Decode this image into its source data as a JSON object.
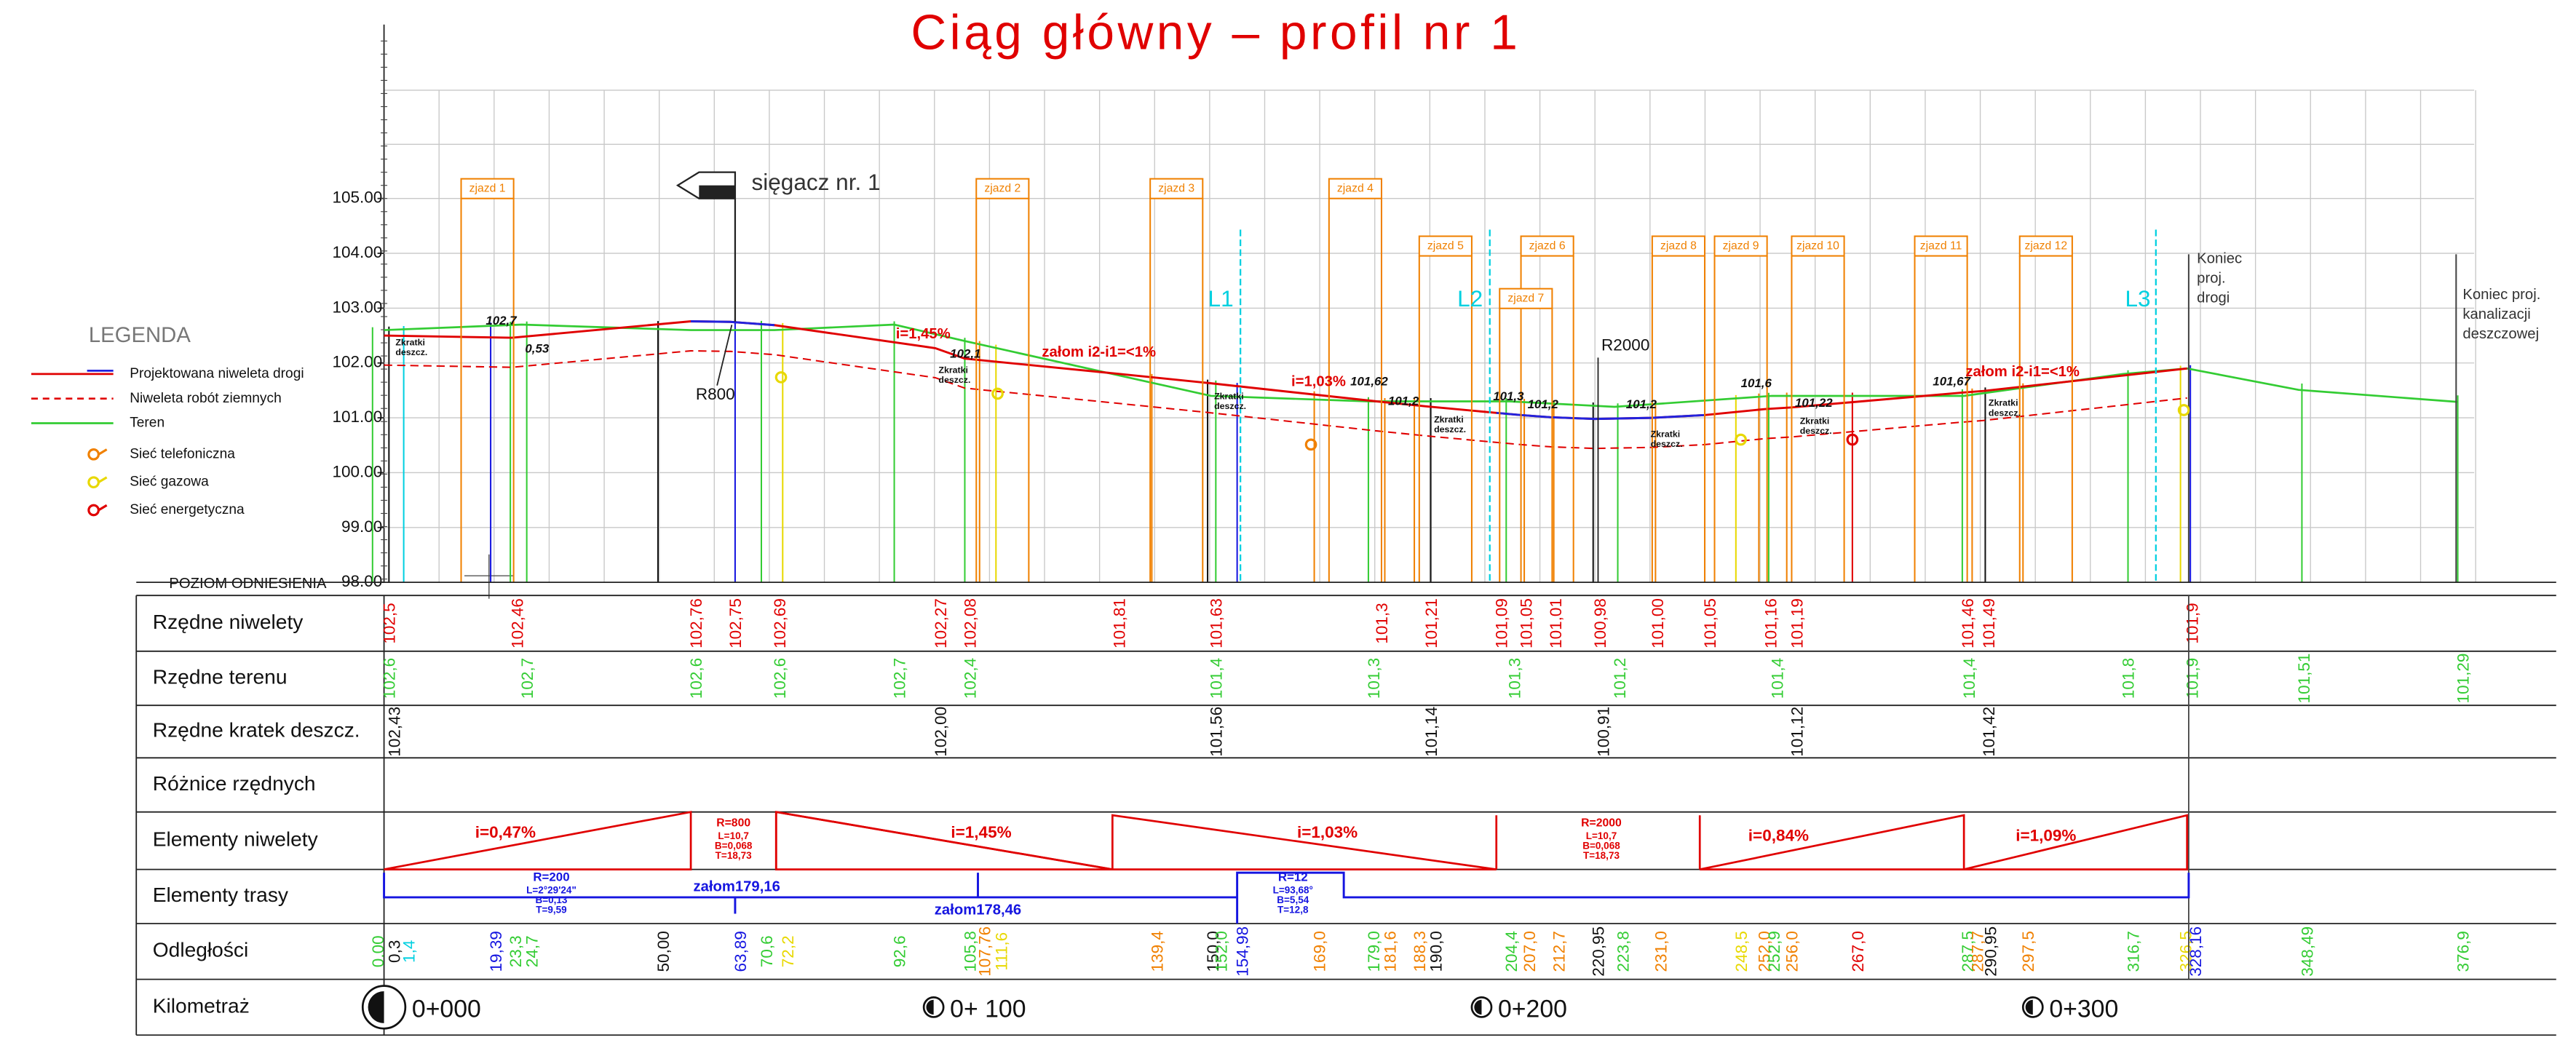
{
  "title": "Ciąg główny – profil nr 1",
  "legend": {
    "title": "LEGENDA",
    "items": [
      "Projektowana niweleta drogi",
      "Niweleta robót ziemnych",
      "Teren",
      "Sieć telefoniczna",
      "Sieć gazowa",
      "Sieć energetyczna"
    ]
  },
  "axis": {
    "ticks": [
      "105.00",
      "104.00",
      "103.00",
      "102.00",
      "101.00",
      "100.00",
      "99.00",
      "98.00"
    ]
  },
  "datum_label": "POZIOM ODNIESIENIA",
  "profile": {
    "driveways": [
      "zjazd 1",
      "zjazd 2",
      "zjazd 3",
      "zjazd 4",
      "zjazd 5",
      "zjazd 6",
      "zjazd 7",
      "zjazd 8",
      "zjazd 9",
      "zjazd 10",
      "zjazd 11",
      "zjazd 12"
    ],
    "lines": [
      "L1",
      "L2",
      "L3"
    ],
    "branch": "sięgacz nr. 1",
    "curves": [
      "R800",
      "R2000"
    ],
    "end_road": [
      "Koniec",
      "proj.",
      "drogi"
    ],
    "end_sewer": [
      "Koniec proj.",
      "kanalizacji",
      "deszczowej"
    ],
    "gradients": [
      "i=1,45%",
      "załom i2-i1=<1%",
      "i=1,03%",
      "załom i2-i1=<1%"
    ],
    "levels": [
      "102,7",
      "0,53",
      "102,1",
      "101,62",
      "101,2",
      "101,3",
      "101,2",
      "101,2",
      "101,6",
      "101,22",
      "101,67"
    ],
    "drain_label": [
      "Zkratki",
      "deszcz."
    ]
  },
  "table": {
    "rows": [
      {
        "header": "Rzędne niwelety",
        "color": "red",
        "items": [
          "102,5",
          "102,46",
          "102,76",
          "102,75",
          "102,69",
          "102,27",
          "102,08",
          "101,81",
          "101,63",
          "101,3",
          "101,21",
          "101,09",
          "101,05",
          "101,01",
          "100,98",
          "101,00",
          "101,05",
          "101,16",
          "101,19",
          "101,46",
          "101,49",
          "101,9"
        ]
      },
      {
        "header": "Rzędne terenu",
        "color": "green",
        "items": [
          "102,6",
          "102,7",
          "102,6",
          "102,6",
          "102,7",
          "102,4",
          "101,4",
          "101,3",
          "101,3",
          "101,2",
          "101,4",
          "101,4",
          "101,8",
          "101,9",
          "101,51",
          "101,29"
        ]
      },
      {
        "header": "Rzędne kratek deszcz.",
        "color": "black",
        "items": [
          "102,43",
          "102,00",
          "101,56",
          "101,14",
          "100,91",
          "101,12",
          "101,42"
        ]
      },
      {
        "header": "Różnice rzędnych"
      },
      {
        "header": "Elementy niwelety",
        "color": "red",
        "items": [
          "i=0,47%",
          "R=800",
          "L=10,7",
          "B=0,068",
          "T=18,73",
          "i=1,45%",
          "i=1,03%",
          "R=2000",
          "L=10,7",
          "B=0,068",
          "T=18,73",
          "i=0,84%",
          "i=1,09%"
        ]
      },
      {
        "header": "Elementy trasy",
        "color": "blue",
        "items": [
          "R=200",
          "L=2°29'24\"",
          "B=0,13",
          "T=9,59",
          "załom179,16",
          "załom178,46",
          "R=12",
          "L=93,68°",
          "B=5,54",
          "T=12,8"
        ]
      },
      {
        "header": "Odległości",
        "items": [
          {
            "text": "0.00",
            "color": "green"
          },
          {
            "text": "0,3",
            "color": "black"
          },
          {
            "text": "1,4",
            "color": "cyan"
          },
          {
            "text": "19,39",
            "color": "blue"
          },
          {
            "text": "23,3",
            "color": "green"
          },
          {
            "text": "24,7",
            "color": "green"
          },
          {
            "text": "50,00",
            "color": "black"
          },
          {
            "text": "63,89",
            "color": "blue"
          },
          {
            "text": "70,6",
            "color": "green"
          },
          {
            "text": "72,2",
            "color": "yellow"
          },
          {
            "text": "92,6",
            "color": "green"
          },
          {
            "text": "105,8",
            "color": "green"
          },
          {
            "text": "107,76",
            "color": "orange"
          },
          {
            "text": "111,6",
            "color": "yellow"
          },
          {
            "text": "139,4",
            "color": "orange"
          },
          {
            "text": "150,0",
            "color": "black"
          },
          {
            "text": "152,0",
            "color": "green"
          },
          {
            "text": "154,98",
            "color": "blue"
          },
          {
            "text": "169,0",
            "color": "orange"
          },
          {
            "text": "179,0",
            "color": "green"
          },
          {
            "text": "181,6",
            "color": "orange"
          },
          {
            "text": "188,3",
            "color": "orange"
          },
          {
            "text": "190,0",
            "color": "black"
          },
          {
            "text": "204,4",
            "color": "green"
          },
          {
            "text": "207,0",
            "color": "orange"
          },
          {
            "text": "212,7",
            "color": "orange"
          },
          {
            "text": "220,95",
            "color": "black"
          },
          {
            "text": "223,8",
            "color": "green"
          },
          {
            "text": "231,0",
            "color": "orange"
          },
          {
            "text": "248,5",
            "color": "yellow"
          },
          {
            "text": "252,0",
            "color": "orange"
          },
          {
            "text": "252,9",
            "color": "green"
          },
          {
            "text": "256,0",
            "color": "orange"
          },
          {
            "text": "267,0",
            "color": "red"
          },
          {
            "text": "287,5",
            "color": "green"
          },
          {
            "text": "287,7",
            "color": "orange"
          },
          {
            "text": "290,95",
            "color": "black"
          },
          {
            "text": "297,5",
            "color": "orange"
          },
          {
            "text": "316,7",
            "color": "green"
          },
          {
            "text": "326,5",
            "color": "yellow"
          },
          {
            "text": "328,16",
            "color": "blue"
          },
          {
            "text": "348,49",
            "color": "green"
          },
          {
            "text": "376,9",
            "color": "green"
          }
        ]
      },
      {
        "header": "Kilometraż",
        "items": [
          "0+000",
          "0+ 100",
          "0+200",
          "0+300"
        ]
      }
    ]
  }
}
